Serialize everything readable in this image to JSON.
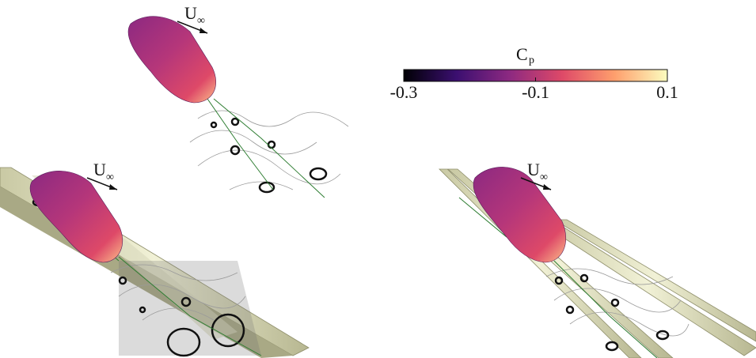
{
  "flow_labels": [
    {
      "symbol": "U",
      "subscript": "∞"
    },
    {
      "symbol": "U",
      "subscript": "∞"
    },
    {
      "symbol": "U",
      "subscript": "∞"
    }
  ],
  "colorbar": {
    "title": "C",
    "subscript": "p",
    "lim": [
      -0.3,
      0.1
    ],
    "ticks": [
      -0.3,
      -0.1,
      0.1
    ],
    "colors": [
      "#000004",
      "#3b0f70",
      "#8c2981",
      "#de4968",
      "#fe9f6d",
      "#fcfdbf"
    ]
  }
}
